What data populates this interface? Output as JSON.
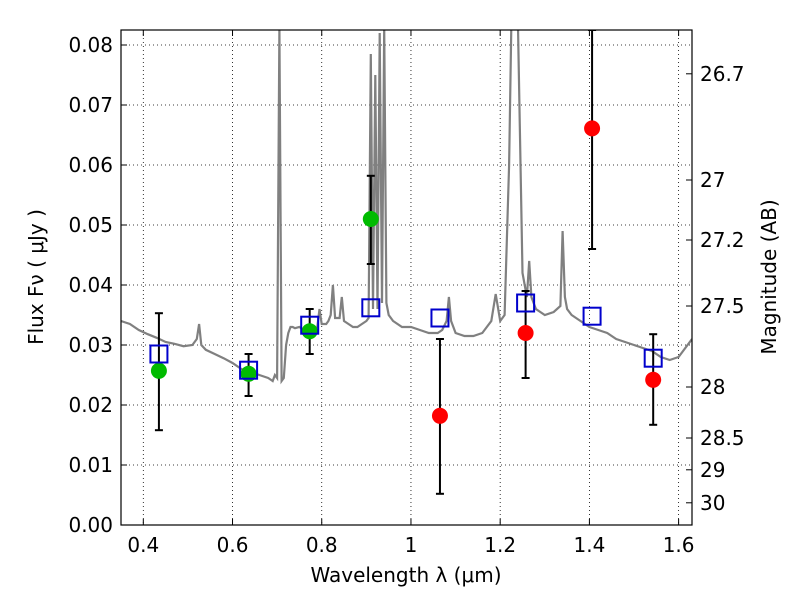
{
  "chart_data": {
    "type": "scatter",
    "xlabel": "Wavelength  λ (μm)",
    "ylabel": "Flux  Fν  ( μJy )",
    "ylabel_right": "Magnitude (AB)",
    "xlim": [
      0.35,
      1.63
    ],
    "ylim": [
      0.0,
      0.0825
    ],
    "grid": true,
    "x_ticks": [
      {
        "value": 0.4,
        "label": "0.4"
      },
      {
        "value": 0.6,
        "label": "0.6"
      },
      {
        "value": 0.8,
        "label": "0.8"
      },
      {
        "value": 1.0,
        "label": "1"
      },
      {
        "value": 1.2,
        "label": "1.2"
      },
      {
        "value": 1.4,
        "label": "1.4"
      },
      {
        "value": 1.6,
        "label": "1.6"
      }
    ],
    "y_ticks": [
      {
        "value": 0.0,
        "label": "0.00"
      },
      {
        "value": 0.01,
        "label": "0.01"
      },
      {
        "value": 0.02,
        "label": "0.02"
      },
      {
        "value": 0.03,
        "label": "0.03"
      },
      {
        "value": 0.04,
        "label": "0.04"
      },
      {
        "value": 0.05,
        "label": "0.05"
      },
      {
        "value": 0.06,
        "label": "0.06"
      },
      {
        "value": 0.07,
        "label": "0.07"
      },
      {
        "value": 0.08,
        "label": "0.08"
      }
    ],
    "right_ticks": [
      {
        "flux": 0.0752,
        "label": "26.7"
      },
      {
        "flux": 0.0575,
        "label": "27"
      },
      {
        "flux": 0.0475,
        "label": "27.2"
      },
      {
        "flux": 0.0365,
        "label": "27.5"
      },
      {
        "flux": 0.023,
        "label": "28"
      },
      {
        "flux": 0.0145,
        "label": "28.5"
      },
      {
        "flux": 0.0092,
        "label": "29"
      },
      {
        "flux": 0.0037,
        "label": "30"
      }
    ],
    "series": [
      {
        "kind": "spectrum",
        "color": "#808080",
        "x": [
          0.35,
          0.37,
          0.39,
          0.41,
          0.43,
          0.45,
          0.47,
          0.49,
          0.51,
          0.52,
          0.525,
          0.53,
          0.54,
          0.56,
          0.58,
          0.6,
          0.62,
          0.64,
          0.66,
          0.68,
          0.69,
          0.695,
          0.7,
          0.705,
          0.71,
          0.715,
          0.72,
          0.725,
          0.73,
          0.735,
          0.74,
          0.75,
          0.76,
          0.77,
          0.78,
          0.79,
          0.795,
          0.8,
          0.81,
          0.815,
          0.82,
          0.825,
          0.83,
          0.84,
          0.845,
          0.85,
          0.86,
          0.87,
          0.88,
          0.89,
          0.9,
          0.905,
          0.91,
          0.915,
          0.92,
          0.925,
          0.93,
          0.935,
          0.94,
          0.945,
          0.95,
          0.96,
          0.98,
          1.0,
          1.02,
          1.04,
          1.06,
          1.07,
          1.08,
          1.085,
          1.09,
          1.1,
          1.12,
          1.14,
          1.16,
          1.17,
          1.18,
          1.19,
          1.2,
          1.21,
          1.22,
          1.225,
          1.23,
          1.235,
          1.24,
          1.25,
          1.26,
          1.265,
          1.27,
          1.28,
          1.29,
          1.3,
          1.32,
          1.335,
          1.34,
          1.345,
          1.35,
          1.36,
          1.38,
          1.4,
          1.42,
          1.44,
          1.46,
          1.48,
          1.5,
          1.52,
          1.54,
          1.56,
          1.58,
          1.6,
          1.63
        ],
        "y": [
          0.034,
          0.0335,
          0.0325,
          0.0318,
          0.0312,
          0.0305,
          0.0302,
          0.0298,
          0.03,
          0.031,
          0.0335,
          0.03,
          0.0292,
          0.0285,
          0.0278,
          0.027,
          0.026,
          0.0255,
          0.025,
          0.0245,
          0.024,
          0.025,
          0.0245,
          0.083,
          0.024,
          0.0245,
          0.03,
          0.032,
          0.033,
          0.033,
          0.0328,
          0.033,
          0.0325,
          0.0322,
          0.0325,
          0.033,
          0.036,
          0.0335,
          0.0335,
          0.034,
          0.035,
          0.04,
          0.0345,
          0.0345,
          0.038,
          0.034,
          0.0335,
          0.033,
          0.033,
          0.0335,
          0.034,
          0.0345,
          0.0785,
          0.036,
          0.075,
          0.036,
          0.082,
          0.037,
          0.083,
          0.037,
          0.035,
          0.034,
          0.033,
          0.033,
          0.0325,
          0.032,
          0.032,
          0.0325,
          0.034,
          0.038,
          0.034,
          0.032,
          0.0315,
          0.0315,
          0.032,
          0.033,
          0.034,
          0.0385,
          0.034,
          0.035,
          0.06,
          0.083,
          0.083,
          0.083,
          0.083,
          0.042,
          0.038,
          0.044,
          0.038,
          0.036,
          0.0355,
          0.035,
          0.0355,
          0.0365,
          0.049,
          0.038,
          0.036,
          0.035,
          0.034,
          0.033,
          0.0325,
          0.032,
          0.031,
          0.0305,
          0.03,
          0.0295,
          0.029,
          0.028,
          0.0275,
          0.028,
          0.031
        ]
      },
      {
        "kind": "photometry-detected",
        "color": "#00bb00",
        "points": [
          {
            "x": 0.435,
            "y": 0.0257,
            "lo": 0.0158,
            "hi": 0.0353
          },
          {
            "x": 0.636,
            "y": 0.0252,
            "lo": 0.0215,
            "hi": 0.0285
          },
          {
            "x": 0.773,
            "y": 0.0323,
            "lo": 0.0285,
            "hi": 0.036
          },
          {
            "x": 0.91,
            "y": 0.051,
            "lo": 0.0435,
            "hi": 0.0582
          }
        ]
      },
      {
        "kind": "photometry-nondetected",
        "color": "#ff0000",
        "points": [
          {
            "x": 1.065,
            "y": 0.0182,
            "lo": 0.0052,
            "hi": 0.031
          },
          {
            "x": 1.257,
            "y": 0.032,
            "lo": 0.0245,
            "hi": 0.039
          },
          {
            "x": 1.406,
            "y": 0.0661,
            "lo": 0.046,
            "hi": 0.0825
          },
          {
            "x": 1.543,
            "y": 0.0242,
            "lo": 0.0167,
            "hi": 0.0318
          }
        ]
      },
      {
        "kind": "model-photometry",
        "color": "#0000cc",
        "points": [
          {
            "x": 0.435,
            "y": 0.0285
          },
          {
            "x": 0.636,
            "y": 0.0258
          },
          {
            "x": 0.773,
            "y": 0.0333
          },
          {
            "x": 0.91,
            "y": 0.0362
          },
          {
            "x": 1.065,
            "y": 0.0345
          },
          {
            "x": 1.257,
            "y": 0.037
          },
          {
            "x": 1.406,
            "y": 0.0348
          },
          {
            "x": 1.543,
            "y": 0.0278
          }
        ]
      }
    ]
  }
}
